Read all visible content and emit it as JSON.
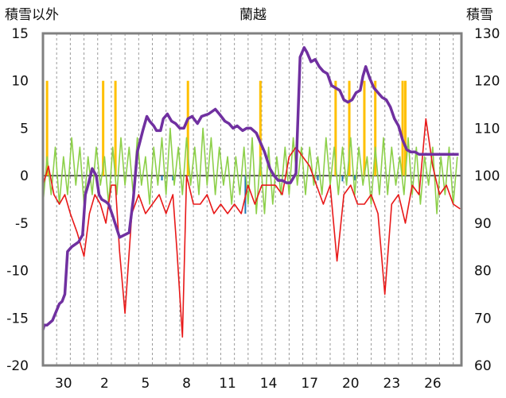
{
  "chart_data": {
    "type": "line",
    "title": "蘭越",
    "ylabel_left": "積雪以外",
    "ylabel_right": "積雪",
    "ylim_left": [
      -20,
      15
    ],
    "ylim_right": [
      60,
      130
    ],
    "left_ticks": [
      "15",
      "10",
      "5",
      "0",
      "-5",
      "-10",
      "-15",
      "-20"
    ],
    "right_ticks": [
      "130",
      "120",
      "110",
      "100",
      "90",
      "80",
      "70",
      "60"
    ],
    "x_ticks": [
      "30",
      "2",
      "5",
      "8",
      "11",
      "14",
      "17",
      "20",
      "23",
      "26"
    ],
    "x_tick_positions": [
      1.5,
      4.5,
      7.5,
      10.5,
      13.5,
      16.5,
      19.5,
      22.5,
      25.5,
      28.5
    ],
    "xlim": [
      0,
      30.6
    ],
    "grid": "vertical dashed daily, dark baseline at 0",
    "colors": {
      "temperature": "#e81818",
      "wind": "#8dd04a",
      "snow_depth": "#7030a0",
      "snowfall": "#ffc000",
      "precipitation": "#1f77b4",
      "axis": "#808080"
    },
    "series": [
      {
        "key": "snowfall",
        "axis": "left",
        "x": [
          0.3,
          4.4,
          5.3,
          10.6,
          15.9,
          21.4,
          22.4,
          23.5,
          24.3,
          26.3,
          26.5
        ],
        "values": [
          10,
          10,
          10,
          10,
          10,
          10,
          10,
          10,
          10,
          10,
          10
        ]
      },
      {
        "key": "precipitation",
        "axis": "left",
        "x": [
          8.7,
          9.5,
          14.8,
          20.1,
          21.9,
          22.8
        ],
        "values": [
          -0.5,
          -0.5,
          -4,
          -0.5,
          -0.6,
          -0.5
        ]
      },
      {
        "key": "temperature",
        "axis": "left",
        "x": [
          0.0,
          0.4,
          0.8,
          1.2,
          1.6,
          2.0,
          2.5,
          3.0,
          3.4,
          3.8,
          4.2,
          4.6,
          5.0,
          5.3,
          5.6,
          6.0,
          6.5,
          7.0,
          7.5,
          8.0,
          8.5,
          9.0,
          9.5,
          9.8,
          10.2,
          10.5,
          11.0,
          11.5,
          12.0,
          12.5,
          13.0,
          13.5,
          14.0,
          14.5,
          15.0,
          15.5,
          16.0,
          16.5,
          17.0,
          17.5,
          18.0,
          18.5,
          19.0,
          19.5,
          20.0,
          20.5,
          21.0,
          21.5,
          22.0,
          22.5,
          23.0,
          23.5,
          24.0,
          24.5,
          25.0,
          25.5,
          26.0,
          26.5,
          27.0,
          27.5,
          28.0,
          28.5,
          29.0,
          29.5,
          30.0,
          30.5
        ],
        "values": [
          -1,
          1,
          -2,
          -3,
          -2,
          -4,
          -6,
          -8.5,
          -4,
          -2,
          -3,
          -5,
          -1,
          -1,
          -8,
          -14.5,
          -4,
          -2,
          -4,
          -3,
          -2,
          -4,
          -2,
          -8,
          -17,
          0,
          -3,
          -3,
          -2,
          -4,
          -3,
          -4,
          -3,
          -4,
          -1,
          -3,
          -1,
          -1,
          -1,
          -2,
          2,
          3,
          2,
          1,
          -1,
          -3,
          -1,
          -9,
          -2,
          -1,
          -3,
          -3,
          -2,
          -4,
          -12.5,
          -3,
          -2,
          -5,
          -1,
          -2,
          6,
          1,
          -2,
          -1,
          -3,
          -3.5
        ]
      },
      {
        "key": "wind",
        "axis": "left",
        "x": [
          0.0,
          0.3,
          0.6,
          0.9,
          1.2,
          1.5,
          1.8,
          2.1,
          2.4,
          2.7,
          3.0,
          3.3,
          3.6,
          3.9,
          4.2,
          4.5,
          4.8,
          5.1,
          5.4,
          5.7,
          6.0,
          6.3,
          6.6,
          6.9,
          7.2,
          7.5,
          7.8,
          8.1,
          8.4,
          8.7,
          9.0,
          9.3,
          9.6,
          9.9,
          10.2,
          10.5,
          10.8,
          11.1,
          11.4,
          11.7,
          12.0,
          12.3,
          12.6,
          12.9,
          13.2,
          13.5,
          13.8,
          14.1,
          14.4,
          14.7,
          15.0,
          15.3,
          15.6,
          15.9,
          16.2,
          16.5,
          16.8,
          17.1,
          17.4,
          17.7,
          18.0,
          18.3,
          18.6,
          18.9,
          19.2,
          19.5,
          19.8,
          20.1,
          20.4,
          20.7,
          21.0,
          21.3,
          21.6,
          21.9,
          22.2,
          22.5,
          22.8,
          23.1,
          23.4,
          23.7,
          24.0,
          24.3,
          24.6,
          24.9,
          25.2,
          25.5,
          25.8,
          26.1,
          26.4,
          26.7,
          27.0,
          27.3,
          27.6,
          27.9,
          28.2,
          28.5,
          28.8,
          29.1,
          29.4,
          29.7,
          30.0,
          30.3
        ],
        "values": [
          -3,
          2,
          -2,
          3,
          -3,
          2,
          -2,
          4,
          -1,
          3,
          -3,
          2,
          -2,
          3,
          -1,
          2,
          -3,
          3,
          -2,
          4,
          -1,
          3,
          -2,
          4,
          -1,
          2,
          -3,
          3,
          -1,
          4,
          -2,
          5,
          -1,
          3,
          -2,
          4,
          -1,
          3,
          -2,
          5,
          -1,
          4,
          -2,
          3,
          -1,
          2,
          -3,
          2,
          -2,
          3,
          -3,
          4,
          -4,
          2,
          -4,
          3,
          -3,
          2,
          -2,
          3,
          -2,
          4,
          -1,
          3,
          -2,
          3,
          -1,
          2,
          -2,
          4,
          -1,
          3,
          -2,
          3,
          -1,
          4,
          -2,
          3,
          -1,
          2,
          -3,
          3,
          -2,
          4,
          -2,
          3,
          -1,
          2,
          -2,
          4,
          -2,
          3,
          -3,
          2,
          -1,
          3,
          -4,
          2,
          -2,
          3,
          -3,
          2
        ]
      },
      {
        "key": "snow_depth",
        "axis": "right",
        "x": [
          0.0,
          0.1,
          0.3,
          0.7,
          1.2,
          1.4,
          1.6,
          1.8,
          2.1,
          2.6,
          2.9,
          3.1,
          3.3,
          3.6,
          3.9,
          4.1,
          4.3,
          4.6,
          4.8,
          5.1,
          5.6,
          6.3,
          6.6,
          6.9,
          7.3,
          7.6,
          7.8,
          8.1,
          8.3,
          8.6,
          8.8,
          9.1,
          9.4,
          9.7,
          10.0,
          10.3,
          10.6,
          10.9,
          11.3,
          11.6,
          12.1,
          12.6,
          12.9,
          13.3,
          13.6,
          13.9,
          14.2,
          14.6,
          14.9,
          15.2,
          15.6,
          15.9,
          16.2,
          16.6,
          16.9,
          17.2,
          17.5,
          17.8,
          18.1,
          18.5,
          18.8,
          19.1,
          19.3,
          19.6,
          19.9,
          20.2,
          20.5,
          20.8,
          21.1,
          21.4,
          21.7,
          22.0,
          22.3,
          22.6,
          22.9,
          23.2,
          23.4,
          23.6,
          23.9,
          24.2,
          24.5,
          24.8,
          25.1,
          25.4,
          25.7,
          26.0,
          26.3,
          26.6,
          26.9,
          27.2,
          27.5,
          27.8,
          28.1,
          28.4,
          28.7,
          29.0,
          29.3,
          29.6,
          29.9,
          30.2,
          30.4
        ],
        "values": [
          67.5,
          68.5,
          68.5,
          69.5,
          73,
          73.5,
          75,
          84,
          85,
          86,
          87.5,
          96,
          98,
          101.5,
          100,
          96,
          95,
          94.5,
          94,
          91.5,
          87,
          88,
          95,
          105,
          109.5,
          112.5,
          111.5,
          110.5,
          109.5,
          109.5,
          112,
          113,
          111.5,
          111,
          110,
          110,
          112,
          112.5,
          111,
          112.5,
          113,
          114,
          113,
          111.5,
          111,
          110,
          110.5,
          109.5,
          110,
          110,
          109,
          107,
          105,
          101.5,
          100,
          99,
          99,
          98.5,
          98.5,
          100.5,
          125,
          127,
          126,
          124,
          124.5,
          123,
          122,
          121.5,
          119,
          118.5,
          118,
          116,
          115.5,
          116,
          117.5,
          118,
          121,
          123,
          120.5,
          118.5,
          117.5,
          116.5,
          116,
          114.5,
          112,
          110.5,
          107.5,
          105.5,
          105,
          105,
          104.5,
          104.5,
          104.5,
          104.5,
          104.5,
          104.5,
          104.5,
          104.5,
          104.5,
          104.5,
          104.5
        ]
      }
    ]
  }
}
